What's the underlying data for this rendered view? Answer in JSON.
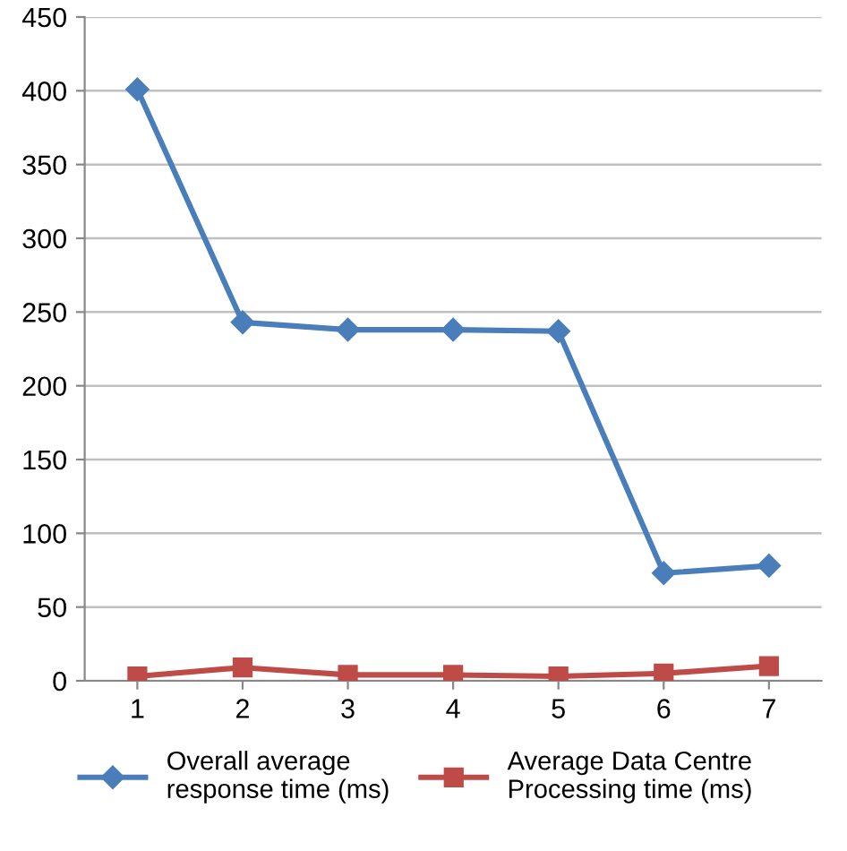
{
  "chart_data": {
    "type": "line",
    "categories": [
      "1",
      "2",
      "3",
      "4",
      "5",
      "6",
      "7"
    ],
    "series": [
      {
        "name": "Overall average\nresponse time (ms)",
        "color": "#4a7ebb",
        "marker": "diamond",
        "values": [
          401,
          243,
          238,
          238,
          237,
          73,
          78
        ]
      },
      {
        "name": "Average Data Centre\nProcessing time (ms)",
        "color": "#be4b48",
        "marker": "square",
        "values": [
          3,
          9,
          4,
          4,
          3,
          5,
          10
        ]
      }
    ],
    "ylim": [
      0,
      450
    ],
    "yticks": [
      0,
      50,
      100,
      150,
      200,
      250,
      300,
      350,
      400,
      450
    ],
    "grid": "y",
    "legend": "bottom",
    "line_style": "solid"
  }
}
